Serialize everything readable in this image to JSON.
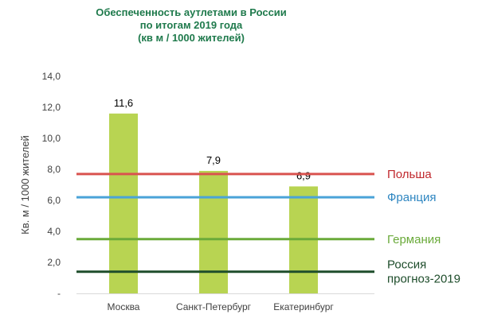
{
  "chart_data": {
    "type": "bar",
    "title_lines": [
      "Обеспеченность аутлетами в России",
      "по итогам 2019 года",
      "(кв м / 1000  жителей)"
    ],
    "title_color": "#1f7a4c",
    "ylabel": "Кв. м / 1000 жителей",
    "xlabel": "",
    "categories": [
      "Москва",
      "Санкт-Петербург",
      "Екатеринбург"
    ],
    "values": [
      11.6,
      7.9,
      6.9
    ],
    "value_labels": [
      "11,6",
      "7,9",
      "6,9"
    ],
    "bar_color": "#b8d452",
    "ylim": [
      0,
      14
    ],
    "y_ticks": [
      0,
      2,
      4,
      6,
      8,
      10,
      12,
      14
    ],
    "y_tick_labels": [
      "-",
      "2,0",
      "4,0",
      "6,0",
      "8,0",
      "10,0",
      "12,0",
      "14,0"
    ],
    "grid": false,
    "reference_lines": [
      {
        "label_lines": [
          "Польша"
        ],
        "value": 7.7,
        "color": "#d9534f",
        "label_color": "#c0282d"
      },
      {
        "label_lines": [
          "Франция"
        ],
        "value": 6.2,
        "color": "#4aa3d8",
        "label_color": "#2e86c1"
      },
      {
        "label_lines": [
          "Германия"
        ],
        "value": 3.5,
        "color": "#6aaa3a",
        "label_color": "#6aaa3a"
      },
      {
        "label_lines": [
          "Россия",
          "прогноз-2019"
        ],
        "value": 1.4,
        "color": "#1e4d2b",
        "label_color": "#1e4d2b"
      }
    ]
  }
}
